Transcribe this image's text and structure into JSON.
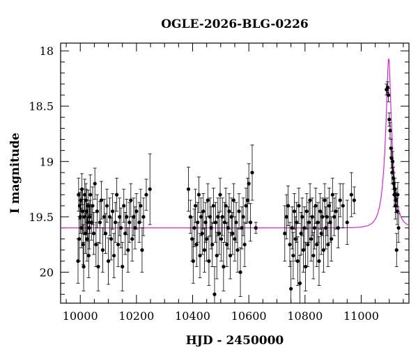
{
  "chart_data": {
    "type": "scatter",
    "title": "OGLE-2026-BLG-0226",
    "xlabel": "HJD - 2450000",
    "ylabel": "I magnitude",
    "xlim": [
      9930,
      11170
    ],
    "ylim": [
      20.28,
      17.93
    ],
    "y_inverted": true,
    "x_ticks": [
      10000,
      10200,
      10400,
      10600,
      10800,
      11000
    ],
    "y_ticks": [
      18,
      18.5,
      19,
      19.5,
      20
    ],
    "grid": false,
    "colors": {
      "points": "#000000",
      "model": "#e020e0"
    },
    "model": {
      "type": "microlensing-paczynski",
      "baseline_mag": 19.6,
      "t0": 11098,
      "tE": 26,
      "u0": 0.25
    },
    "points": [
      [
        9992,
        19.9,
        0.2
      ],
      [
        9994,
        19.3,
        0.15
      ],
      [
        9996,
        19.7,
        0.2
      ],
      [
        9998,
        19.4,
        0.12
      ],
      [
        10000,
        19.5,
        0.15
      ],
      [
        10002,
        19.35,
        0.1
      ],
      [
        10004,
        19.6,
        0.18
      ],
      [
        10006,
        19.25,
        0.14
      ],
      [
        10008,
        19.45,
        0.2
      ],
      [
        10010,
        19.75,
        0.18
      ],
      [
        10012,
        19.95,
        0.22
      ],
      [
        10014,
        19.5,
        0.16
      ],
      [
        10016,
        19.3,
        0.14
      ],
      [
        10018,
        19.65,
        0.18
      ],
      [
        10020,
        19.35,
        0.15
      ],
      [
        10022,
        19.45,
        0.2
      ],
      [
        10024,
        19.7,
        0.2
      ],
      [
        10026,
        19.55,
        0.17
      ],
      [
        10028,
        19.4,
        0.14
      ],
      [
        10030,
        19.85,
        0.2
      ],
      [
        10032,
        19.6,
        0.19
      ],
      [
        10034,
        19.5,
        0.15
      ],
      [
        10036,
        19.3,
        0.18
      ],
      [
        10040,
        19.55,
        0.16
      ],
      [
        10044,
        19.4,
        0.17
      ],
      [
        10048,
        19.65,
        0.19
      ],
      [
        10052,
        19.2,
        0.14
      ],
      [
        10056,
        19.75,
        0.2
      ],
      [
        10060,
        19.45,
        0.15
      ],
      [
        10064,
        19.95,
        0.22
      ],
      [
        10070,
        19.55,
        0.19
      ],
      [
        10075,
        19.35,
        0.17
      ],
      [
        10080,
        19.8,
        0.2
      ],
      [
        10085,
        19.5,
        0.16
      ],
      [
        10090,
        19.65,
        0.18
      ],
      [
        10095,
        19.4,
        0.15
      ],
      [
        10100,
        19.9,
        0.21
      ],
      [
        10105,
        19.5,
        0.17
      ],
      [
        10110,
        19.7,
        0.19
      ],
      [
        10115,
        19.45,
        0.16
      ],
      [
        10120,
        19.85,
        0.2
      ],
      [
        10125,
        19.55,
        0.18
      ],
      [
        10130,
        19.3,
        0.15
      ],
      [
        10135,
        19.75,
        0.2
      ],
      [
        10140,
        19.5,
        0.17
      ],
      [
        10145,
        19.6,
        0.18
      ],
      [
        10150,
        19.95,
        0.22
      ],
      [
        10155,
        19.4,
        0.15
      ],
      [
        10160,
        19.65,
        0.19
      ],
      [
        10165,
        19.5,
        0.16
      ],
      [
        10170,
        19.8,
        0.2
      ],
      [
        10175,
        19.55,
        0.18
      ],
      [
        10180,
        19.35,
        0.15
      ],
      [
        10185,
        19.7,
        0.2
      ],
      [
        10190,
        19.5,
        0.17
      ],
      [
        10195,
        19.6,
        0.19
      ],
      [
        10200,
        19.45,
        0.16
      ],
      [
        10210,
        19.55,
        0.18
      ],
      [
        10215,
        19.4,
        0.15
      ],
      [
        10220,
        19.8,
        0.2
      ],
      [
        10225,
        19.5,
        0.17
      ],
      [
        10235,
        19.3,
        0.14
      ],
      [
        10248,
        19.25,
        0.32
      ],
      [
        10385,
        19.25,
        0.2
      ],
      [
        10392,
        19.5,
        0.15
      ],
      [
        10398,
        19.7,
        0.2
      ],
      [
        10402,
        19.9,
        0.2
      ],
      [
        10406,
        19.6,
        0.17
      ],
      [
        10410,
        19.4,
        0.15
      ],
      [
        10414,
        19.75,
        0.2
      ],
      [
        10418,
        19.55,
        0.18
      ],
      [
        10422,
        19.3,
        0.16
      ],
      [
        10426,
        19.85,
        0.2
      ],
      [
        10430,
        19.5,
        0.17
      ],
      [
        10434,
        19.65,
        0.19
      ],
      [
        10438,
        19.45,
        0.16
      ],
      [
        10442,
        19.8,
        0.2
      ],
      [
        10446,
        19.55,
        0.18
      ],
      [
        10450,
        19.7,
        0.2
      ],
      [
        10454,
        19.35,
        0.15
      ],
      [
        10458,
        19.9,
        0.22
      ],
      [
        10462,
        19.5,
        0.17
      ],
      [
        10466,
        19.6,
        0.19
      ],
      [
        10470,
        19.75,
        0.2
      ],
      [
        10474,
        19.4,
        0.16
      ],
      [
        10478,
        20.2,
        0.25
      ],
      [
        10482,
        19.55,
        0.18
      ],
      [
        10486,
        19.85,
        0.21
      ],
      [
        10490,
        19.5,
        0.17
      ],
      [
        10494,
        19.65,
        0.19
      ],
      [
        10498,
        19.3,
        0.15
      ],
      [
        10502,
        19.7,
        0.2
      ],
      [
        10506,
        19.5,
        0.17
      ],
      [
        10510,
        19.95,
        0.22
      ],
      [
        10514,
        19.55,
        0.18
      ],
      [
        10518,
        19.4,
        0.16
      ],
      [
        10522,
        19.75,
        0.2
      ],
      [
        10526,
        19.6,
        0.19
      ],
      [
        10530,
        19.45,
        0.16
      ],
      [
        10534,
        19.85,
        0.21
      ],
      [
        10538,
        19.5,
        0.17
      ],
      [
        10542,
        19.65,
        0.19
      ],
      [
        10546,
        19.35,
        0.15
      ],
      [
        10550,
        19.7,
        0.2
      ],
      [
        10555,
        19.55,
        0.18
      ],
      [
        10560,
        19.8,
        0.2
      ],
      [
        10565,
        19.45,
        0.16
      ],
      [
        10570,
        20.0,
        0.22
      ],
      [
        10575,
        19.6,
        0.19
      ],
      [
        10580,
        19.5,
        0.17
      ],
      [
        10585,
        19.75,
        0.2
      ],
      [
        10590,
        19.4,
        0.16
      ],
      [
        10596,
        19.35,
        0.2
      ],
      [
        10600,
        19.2,
        0.18
      ],
      [
        10606,
        19.55,
        0.17
      ],
      [
        10612,
        19.1,
        0.25
      ],
      [
        10625,
        19.6,
        0.05
      ],
      [
        10728,
        19.65,
        0.25
      ],
      [
        10734,
        19.5,
        0.2
      ],
      [
        10740,
        19.4,
        0.18
      ],
      [
        10746,
        19.75,
        0.2
      ],
      [
        10750,
        20.15,
        0.25
      ],
      [
        10754,
        19.6,
        0.19
      ],
      [
        10758,
        19.85,
        0.21
      ],
      [
        10762,
        19.45,
        0.16
      ],
      [
        10766,
        19.7,
        0.2
      ],
      [
        10770,
        19.55,
        0.18
      ],
      [
        10774,
        19.9,
        0.22
      ],
      [
        10778,
        19.4,
        0.16
      ],
      [
        10782,
        20.1,
        0.25
      ],
      [
        10786,
        19.65,
        0.19
      ],
      [
        10790,
        19.5,
        0.17
      ],
      [
        10794,
        19.8,
        0.2
      ],
      [
        10798,
        19.6,
        0.19
      ],
      [
        10802,
        19.95,
        0.22
      ],
      [
        10806,
        19.45,
        0.16
      ],
      [
        10810,
        19.75,
        0.2
      ],
      [
        10814,
        19.55,
        0.18
      ],
      [
        10818,
        19.35,
        0.15
      ],
      [
        10822,
        19.7,
        0.2
      ],
      [
        10826,
        19.5,
        0.17
      ],
      [
        10830,
        19.85,
        0.21
      ],
      [
        10834,
        19.6,
        0.19
      ],
      [
        10838,
        19.4,
        0.16
      ],
      [
        10842,
        19.75,
        0.2
      ],
      [
        10846,
        19.55,
        0.18
      ],
      [
        10850,
        19.9,
        0.22
      ],
      [
        10854,
        19.45,
        0.16
      ],
      [
        10858,
        19.65,
        0.19
      ],
      [
        10862,
        19.5,
        0.17
      ],
      [
        10866,
        19.8,
        0.2
      ],
      [
        10870,
        19.35,
        0.15
      ],
      [
        10874,
        19.6,
        0.19
      ],
      [
        10878,
        19.5,
        0.17
      ],
      [
        10882,
        19.75,
        0.2
      ],
      [
        10886,
        19.4,
        0.16
      ],
      [
        10890,
        19.55,
        0.18
      ],
      [
        10894,
        19.7,
        0.2
      ],
      [
        10898,
        19.3,
        0.15
      ],
      [
        10904,
        19.5,
        0.17
      ],
      [
        10910,
        19.45,
        0.16
      ],
      [
        10918,
        19.6,
        0.18
      ],
      [
        10925,
        19.35,
        0.15
      ],
      [
        10935,
        19.4,
        0.2
      ],
      [
        10950,
        19.55,
        0.2
      ],
      [
        10965,
        19.3,
        0.2
      ],
      [
        10975,
        19.35,
        0.12
      ],
      [
        11090,
        18.35,
        0.05
      ],
      [
        11094,
        18.33,
        0.05
      ],
      [
        11097,
        18.4,
        0.06
      ],
      [
        11100,
        18.62,
        0.06
      ],
      [
        11103,
        18.72,
        0.07
      ],
      [
        11106,
        18.88,
        0.08
      ],
      [
        11108,
        18.97,
        0.09
      ],
      [
        11110,
        19.1,
        0.1
      ],
      [
        11112,
        19.0,
        0.09
      ],
      [
        11114,
        19.15,
        0.1
      ],
      [
        11116,
        19.2,
        0.1
      ],
      [
        11118,
        19.3,
        0.11
      ],
      [
        11120,
        19.25,
        0.1
      ],
      [
        11122,
        19.4,
        0.12
      ],
      [
        11124,
        19.35,
        0.11
      ],
      [
        11126,
        19.8,
        0.15
      ],
      [
        11128,
        19.45,
        0.12
      ],
      [
        11130,
        19.3,
        0.11
      ],
      [
        11133,
        19.6,
        0.13
      ]
    ]
  }
}
